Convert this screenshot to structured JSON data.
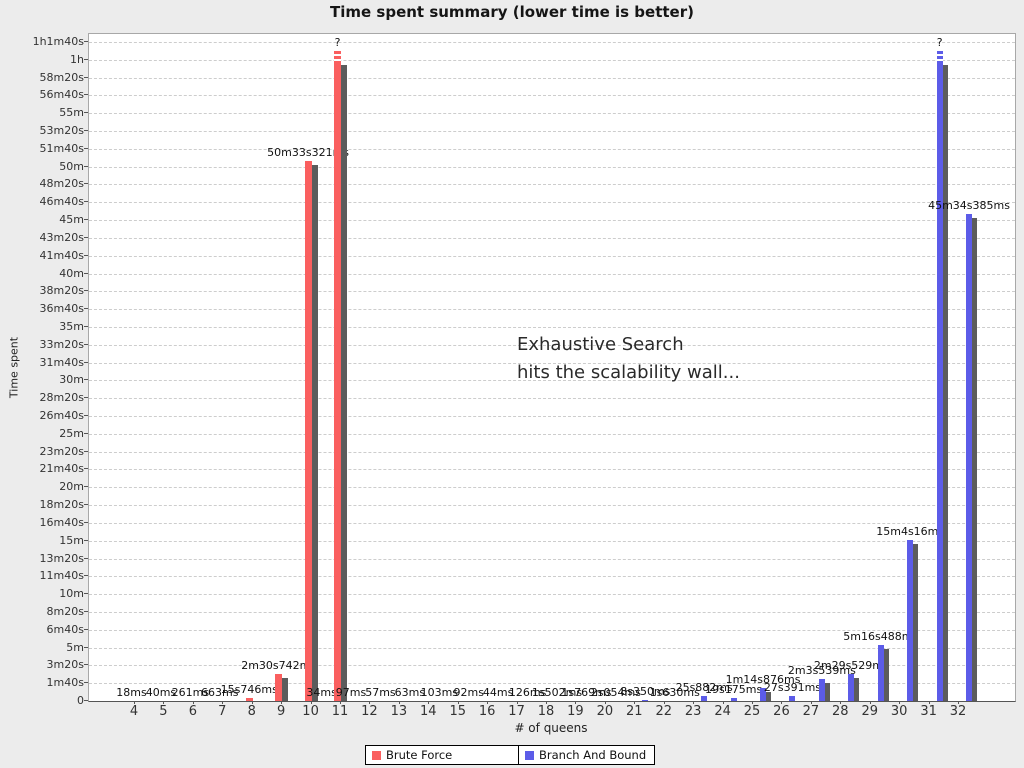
{
  "title": "Time spent summary (lower time is better)",
  "annotation": {
    "line1": "Exhaustive Search",
    "line2": "hits the scalability wall..."
  },
  "legend": {
    "items": [
      {
        "label": "Brute Force",
        "color": "#fa5f5f"
      },
      {
        "label": "Branch And Bound",
        "color": "#5c5ce8"
      }
    ]
  },
  "chart_data": {
    "type": "bar",
    "title": "Time spent summary (lower time is better)",
    "xlabel": "# of queens",
    "ylabel": "Time spent",
    "grid": "horizontal-dashed",
    "legend_position": "bottom",
    "categories": [
      4,
      5,
      6,
      7,
      8,
      9,
      10,
      11,
      12,
      13,
      14,
      15,
      16,
      17,
      18,
      19,
      20,
      21,
      22,
      23,
      24,
      25,
      26,
      27,
      28,
      29,
      30,
      31,
      32
    ],
    "y_axis": {
      "min_seconds": 0,
      "max_seconds": 3700,
      "tick_step_seconds": 100,
      "tick_labels_top_to_bottom": [
        "1h1m40s",
        "1h",
        "58m20s",
        "56m40s",
        "55m",
        "53m20s",
        "51m40s",
        "50m",
        "48m20s",
        "46m40s",
        "45m",
        "43m20s",
        "41m40s",
        "40m",
        "38m20s",
        "36m40s",
        "35m",
        "33m20s",
        "31m40s",
        "30m",
        "28m20s",
        "26m40s",
        "25m",
        "23m20s",
        "21m40s",
        "20m",
        "18m20s",
        "16m40s",
        "15m",
        "13m20s",
        "11m40s",
        "10m",
        "8m20s",
        "6m40s",
        "5m",
        "3m20s",
        "1m40s",
        "0"
      ]
    },
    "timeout_display_seconds": 3650,
    "timeout_marker": "?",
    "series": [
      {
        "name": "Brute Force",
        "color": "#fa5f5f",
        "shadow_color": "#5c5c5c",
        "points": [
          {
            "queens": 4,
            "seconds": 0.018,
            "label": "18ms"
          },
          {
            "queens": 5,
            "seconds": 0.04,
            "label": "40ms"
          },
          {
            "queens": 6,
            "seconds": 0.261,
            "label": "261ms"
          },
          {
            "queens": 7,
            "seconds": 0.663,
            "label": "663ms"
          },
          {
            "queens": 8,
            "seconds": 15.746,
            "label": "15s746ms"
          },
          {
            "queens": 9,
            "seconds": 150.742,
            "label": "2m30s742ms"
          },
          {
            "queens": 10,
            "seconds": 3033.321,
            "label": "50m33s321ms"
          },
          {
            "queens": 11,
            "timeout": true,
            "label": "?"
          }
        ]
      },
      {
        "name": "Branch And Bound",
        "color": "#5c5ce8",
        "shadow_color": "#5c5c5c",
        "points": [
          {
            "queens": 10,
            "seconds": 0.034,
            "label": "34ms"
          },
          {
            "queens": 11,
            "seconds": 0.097,
            "label": "97ms"
          },
          {
            "queens": 12,
            "seconds": 0.057,
            "label": "57ms"
          },
          {
            "queens": 13,
            "seconds": 0.063,
            "label": "63ms"
          },
          {
            "queens": 14,
            "seconds": 0.103,
            "label": "103ms"
          },
          {
            "queens": 15,
            "seconds": 0.092,
            "label": "92ms"
          },
          {
            "queens": 16,
            "seconds": 0.044,
            "label": "44ms"
          },
          {
            "queens": 17,
            "seconds": 0.126,
            "label": "126ms"
          },
          {
            "queens": 18,
            "seconds": 1.502,
            "label": "1s502ms"
          },
          {
            "queens": 19,
            "seconds": 1.769,
            "label": "1s769ms"
          },
          {
            "queens": 20,
            "seconds": 2.054,
            "label": "2s054ms"
          },
          {
            "queens": 21,
            "seconds": 8.35,
            "label": "8s350ms"
          },
          {
            "queens": 22,
            "seconds": 1.63,
            "label": "1s630ms"
          },
          {
            "queens": 23,
            "seconds": 25.882,
            "label": "25s882ms"
          },
          {
            "queens": 24,
            "seconds": 19.175,
            "label": "19s175ms"
          },
          {
            "queens": 25,
            "seconds": 74.876,
            "label": "1m14s876ms"
          },
          {
            "queens": 26,
            "seconds": 27.391,
            "label": "27s391ms"
          },
          {
            "queens": 27,
            "seconds": 123.539,
            "label": "2m3s539ms"
          },
          {
            "queens": 28,
            "seconds": 149.529,
            "label": "2m29s529ms"
          },
          {
            "queens": 29,
            "seconds": 316.488,
            "label": "5m16s488ms"
          },
          {
            "queens": 30,
            "seconds": 904.016,
            "label": "15m4s16ms"
          },
          {
            "queens": 31,
            "timeout": true,
            "label": "?"
          },
          {
            "queens": 32,
            "seconds": 2734.385,
            "label": "45m34s385ms"
          }
        ]
      }
    ],
    "annotation": "Exhaustive Search hits the scalability wall..."
  }
}
